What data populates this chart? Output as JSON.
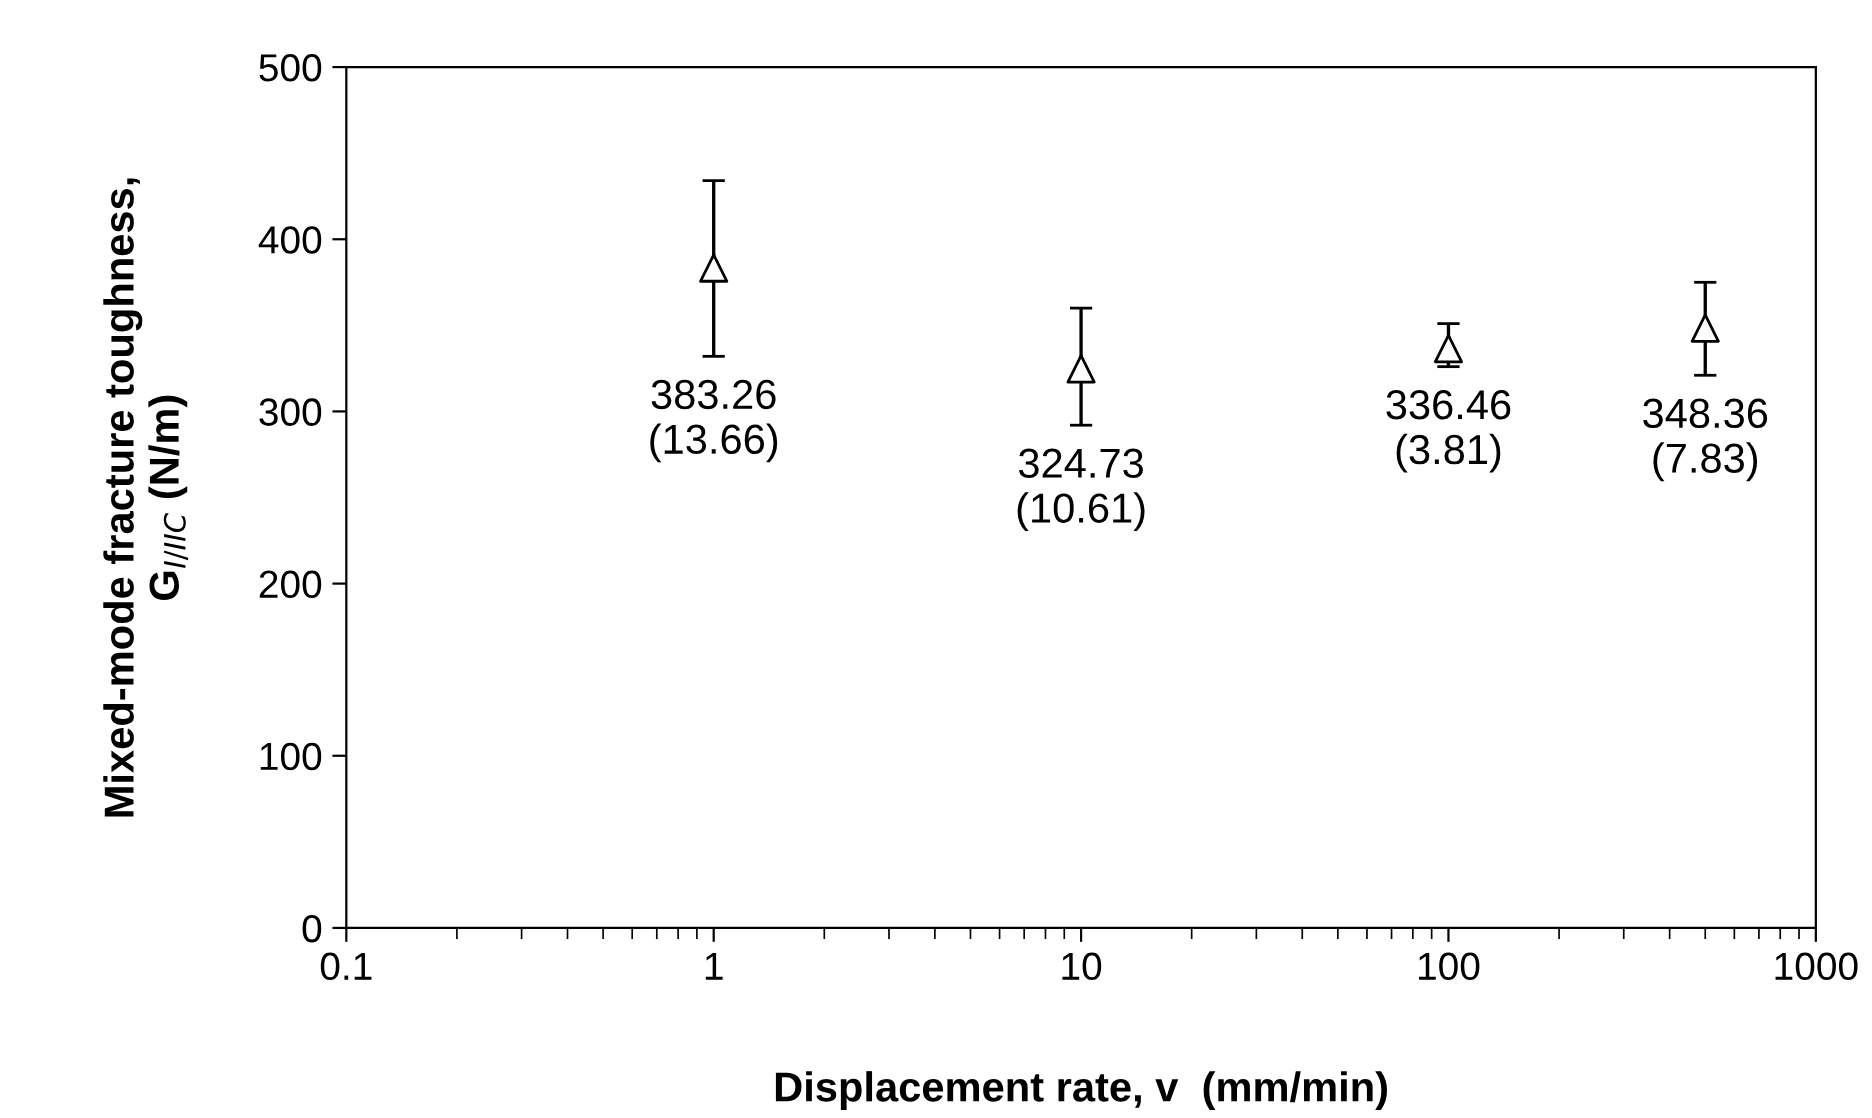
{
  "chart_data": {
    "type": "scatter",
    "xlabel": "Displacement rate, v  (mm/min)",
    "ylabel": "Mixed-mode fracture toughness,\nG$_{I/IIC}$ (N/m)",
    "x": [
      1,
      10,
      100,
      500
    ],
    "series": [
      {
        "color": "#000000",
        "values": [
          383.26,
          324.73,
          336.46,
          348.36
        ],
        "errors": [
          [
            332,
            434
          ],
          [
            292,
            360
          ],
          [
            326,
            351
          ],
          [
            321,
            375
          ]
        ],
        "value_labels": [
          "383.26\n(13.66)",
          "324.73\n(10.61)",
          "336.46\n(3.81)",
          "348.36\n(7.83)"
        ]
      }
    ],
    "log": "x",
    "xlim": [
      0.1,
      1000
    ],
    "xticks": [
      0.1,
      1,
      10,
      100,
      1000
    ],
    "ylim": [
      0,
      500
    ],
    "yticks": [
      0,
      100,
      200,
      300,
      400,
      500
    ],
    "marker": "triangle",
    "grid": false,
    "legend": false
  }
}
